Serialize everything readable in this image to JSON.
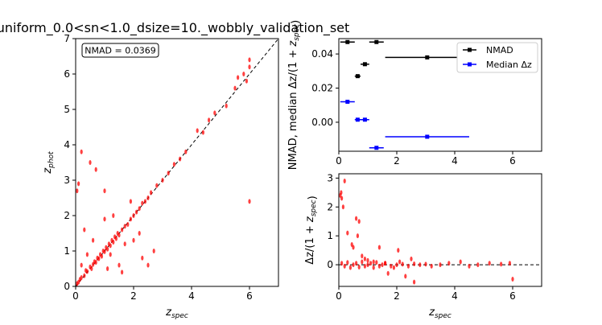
{
  "chart_data": [
    {
      "type": "scatter",
      "title": "uniform_0.0<sn<1.0_dsize=10._wobbly_validation_set",
      "xlabel": "z_spec",
      "ylabel": "z_phot",
      "xlim": [
        0,
        7
      ],
      "ylim": [
        0,
        7
      ],
      "xticks": [
        "0",
        "2",
        "4",
        "6"
      ],
      "yticks": [
        "0",
        "1",
        "2",
        "3",
        "4",
        "5",
        "6",
        "7"
      ],
      "annotation": "NMAD = 0.0369",
      "reference_line": {
        "style": "dashed",
        "color": "#000000",
        "x": [
          0,
          7
        ],
        "y": [
          0,
          7
        ]
      },
      "series": [
        {
          "color": "#ff0000",
          "points": [
            [
              0.05,
              0.08
            ],
            [
              0.1,
              0.12
            ],
            [
              0.15,
              0.2
            ],
            [
              0.2,
              0.25
            ],
            [
              0.3,
              0.3
            ],
            [
              0.35,
              0.45
            ],
            [
              0.4,
              0.42
            ],
            [
              0.5,
              0.55
            ],
            [
              0.55,
              0.5
            ],
            [
              0.6,
              0.62
            ],
            [
              0.65,
              0.7
            ],
            [
              0.7,
              0.68
            ],
            [
              0.75,
              0.8
            ],
            [
              0.8,
              0.78
            ],
            [
              0.85,
              0.9
            ],
            [
              0.9,
              0.85
            ],
            [
              0.95,
              1.0
            ],
            [
              1.0,
              0.98
            ],
            [
              1.05,
              1.1
            ],
            [
              1.1,
              1.05
            ],
            [
              1.15,
              1.2
            ],
            [
              1.2,
              1.15
            ],
            [
              1.25,
              1.3
            ],
            [
              1.3,
              1.25
            ],
            [
              1.35,
              1.4
            ],
            [
              1.4,
              1.35
            ],
            [
              1.45,
              1.5
            ],
            [
              1.5,
              1.45
            ],
            [
              1.6,
              1.6
            ],
            [
              1.7,
              1.7
            ],
            [
              1.8,
              1.75
            ],
            [
              1.9,
              1.9
            ],
            [
              2.0,
              2.0
            ],
            [
              2.1,
              2.1
            ],
            [
              2.2,
              2.2
            ],
            [
              2.3,
              2.35
            ],
            [
              2.4,
              2.4
            ],
            [
              2.5,
              2.5
            ],
            [
              2.6,
              2.65
            ],
            [
              2.8,
              2.85
            ],
            [
              3.0,
              3.0
            ],
            [
              3.2,
              3.2
            ],
            [
              3.4,
              3.45
            ],
            [
              3.6,
              3.6
            ],
            [
              3.8,
              3.8
            ],
            [
              4.2,
              4.4
            ],
            [
              4.4,
              4.35
            ],
            [
              4.6,
              4.7
            ],
            [
              4.8,
              4.9
            ],
            [
              5.2,
              5.1
            ],
            [
              5.5,
              5.6
            ],
            [
              5.6,
              5.9
            ],
            [
              5.8,
              6.0
            ],
            [
              5.9,
              5.8
            ],
            [
              6.0,
              6.2
            ],
            [
              6.0,
              6.4
            ],
            [
              0.05,
              2.7
            ],
            [
              0.1,
              2.9
            ],
            [
              0.2,
              3.8
            ],
            [
              0.5,
              3.5
            ],
            [
              0.7,
              3.3
            ],
            [
              1.0,
              2.7
            ],
            [
              0.3,
              1.6
            ],
            [
              0.6,
              1.3
            ],
            [
              1.0,
              1.9
            ],
            [
              1.3,
              2.0
            ],
            [
              1.1,
              0.5
            ],
            [
              1.5,
              0.6
            ],
            [
              2.3,
              0.8
            ],
            [
              2.7,
              1.0
            ],
            [
              2.5,
              0.6
            ],
            [
              1.7,
              1.2
            ],
            [
              2.0,
              1.3
            ],
            [
              0.4,
              0.9
            ],
            [
              0.2,
              0.6
            ],
            [
              1.2,
              0.9
            ],
            [
              1.9,
              2.4
            ],
            [
              2.2,
              1.5
            ],
            [
              1.6,
              0.4
            ],
            [
              6.0,
              2.4
            ]
          ]
        }
      ]
    },
    {
      "type": "scatter",
      "title": "",
      "xlabel": "",
      "ylabel": "NMAD, median Δz/(1 + z_spec)",
      "xlim": [
        0,
        7
      ],
      "ylim": [
        -0.017,
        0.049
      ],
      "xticks": [
        "0",
        "2",
        "4",
        "6"
      ],
      "yticks": [
        "0.00",
        "0.02",
        "0.04"
      ],
      "legend_position": "upper-right",
      "series": [
        {
          "name": "NMAD",
          "color": "#000000",
          "points": [
            {
              "x": 0.3,
              "y": 0.047,
              "xerr": 0.25
            },
            {
              "x": 0.65,
              "y": 0.027,
              "xerr": 0.1
            },
            {
              "x": 0.9,
              "y": 0.034,
              "xerr": 0.15
            },
            {
              "x": 1.3,
              "y": 0.047,
              "xerr": 0.25
            },
            {
              "x": 3.05,
              "y": 0.038,
              "xerr": 1.45
            }
          ]
        },
        {
          "name": "Median Δz",
          "color": "#0000ff",
          "points": [
            {
              "x": 0.3,
              "y": 0.012,
              "xerr": 0.25
            },
            {
              "x": 0.65,
              "y": 0.0015,
              "xerr": 0.1
            },
            {
              "x": 0.9,
              "y": 0.0015,
              "xerr": 0.15
            },
            {
              "x": 1.3,
              "y": -0.015,
              "xerr": 0.25
            },
            {
              "x": 3.05,
              "y": -0.0085,
              "xerr": 1.45
            }
          ]
        }
      ]
    },
    {
      "type": "scatter",
      "title": "",
      "xlabel": "z_spec",
      "ylabel": "Δz/(1 + z_spec)",
      "xlim": [
        0,
        7
      ],
      "ylim": [
        -0.75,
        3.15
      ],
      "xticks": [
        "0",
        "2",
        "4",
        "6"
      ],
      "yticks": [
        "0",
        "1",
        "2",
        "3"
      ],
      "reference_line": {
        "style": "dashed",
        "color": "#000000",
        "y": 0
      },
      "series": [
        {
          "color": "#ff0000",
          "points": [
            [
              0.05,
              2.4
            ],
            [
              0.08,
              2.5
            ],
            [
              0.1,
              2.3
            ],
            [
              0.15,
              2.0
            ],
            [
              0.2,
              2.9
            ],
            [
              0.3,
              1.1
            ],
            [
              0.45,
              0.7
            ],
            [
              0.5,
              0.6
            ],
            [
              0.6,
              1.6
            ],
            [
              0.65,
              1.0
            ],
            [
              0.7,
              1.5
            ],
            [
              0.8,
              0.3
            ],
            [
              0.9,
              0.2
            ],
            [
              1.0,
              0.15
            ],
            [
              1.2,
              0.1
            ],
            [
              1.4,
              0.6
            ],
            [
              1.6,
              0.05
            ],
            [
              1.7,
              -0.3
            ],
            [
              1.9,
              -0.1
            ],
            [
              2.05,
              0.5
            ],
            [
              2.1,
              0.1
            ],
            [
              2.3,
              -0.4
            ],
            [
              2.6,
              -0.6
            ],
            [
              2.5,
              0.2
            ],
            [
              0.1,
              0.05
            ],
            [
              0.2,
              -0.05
            ],
            [
              0.3,
              0.08
            ],
            [
              0.4,
              -0.1
            ],
            [
              0.5,
              0.0
            ],
            [
              0.6,
              0.05
            ],
            [
              0.7,
              -0.08
            ],
            [
              0.8,
              0.1
            ],
            [
              0.9,
              -0.05
            ],
            [
              1.0,
              0.0
            ],
            [
              1.1,
              0.05
            ],
            [
              1.2,
              -0.1
            ],
            [
              1.3,
              0.08
            ],
            [
              1.4,
              -0.05
            ],
            [
              1.5,
              0.0
            ],
            [
              1.6,
              0.05
            ],
            [
              1.8,
              -0.05
            ],
            [
              2.0,
              0.0
            ],
            [
              2.2,
              0.02
            ],
            [
              2.4,
              -0.05
            ],
            [
              2.6,
              0.03
            ],
            [
              2.8,
              0.0
            ],
            [
              3.0,
              0.02
            ],
            [
              3.2,
              -0.05
            ],
            [
              3.5,
              0.0
            ],
            [
              3.8,
              0.05
            ],
            [
              4.2,
              0.1
            ],
            [
              4.5,
              -0.05
            ],
            [
              4.8,
              0.0
            ],
            [
              5.2,
              0.05
            ],
            [
              5.6,
              0.02
            ],
            [
              5.9,
              0.05
            ],
            [
              6.0,
              -0.5
            ]
          ]
        }
      ]
    }
  ]
}
